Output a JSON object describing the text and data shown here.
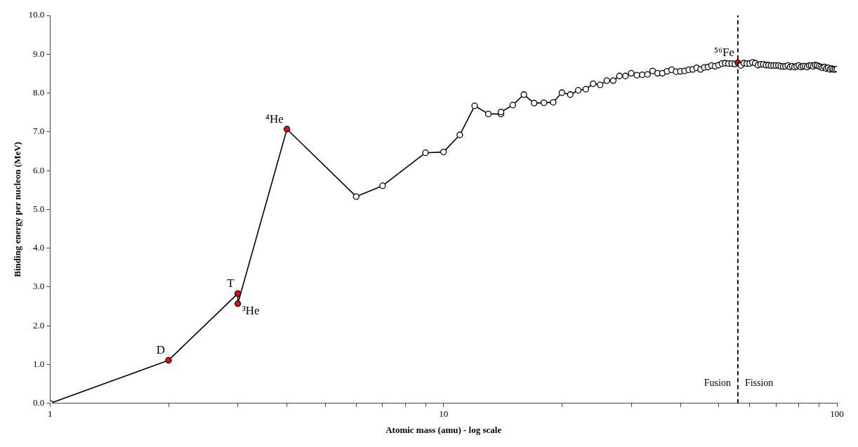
{
  "chart_data": {
    "type": "line",
    "xlabel": "Atomic mass (amu) - log scale",
    "ylabel": "Binding energy per nucleon (MeV)",
    "log": "x",
    "xlim": [
      1,
      100
    ],
    "ylim": [
      0,
      10
    ],
    "xticks": [
      1,
      {
        "value": 2,
        "label": null
      },
      {
        "value": 3,
        "label": null
      },
      {
        "value": 4,
        "label": null
      },
      {
        "value": 5,
        "label": null
      },
      {
        "value": 6,
        "label": null
      },
      {
        "value": 7,
        "label": null
      },
      {
        "value": 8,
        "label": null
      },
      {
        "value": 9,
        "label": null
      },
      10,
      {
        "value": 20,
        "label": null
      },
      {
        "value": 30,
        "label": null
      },
      {
        "value": 40,
        "label": null
      },
      {
        "value": 50,
        "label": null
      },
      {
        "value": 60,
        "label": null
      },
      {
        "value": 70,
        "label": null
      },
      {
        "value": 80,
        "label": null
      },
      {
        "value": 90,
        "label": null
      },
      100
    ],
    "yticks": [
      {
        "value": 0,
        "label": "0.0"
      },
      {
        "value": 1,
        "label": "1.0"
      },
      {
        "value": 2,
        "label": "2.0"
      },
      {
        "value": 3,
        "label": "3.0"
      },
      {
        "value": 4,
        "label": "4.0"
      },
      {
        "value": 5,
        "label": "5.0"
      },
      {
        "value": 6,
        "label": "6.0"
      },
      {
        "value": 7,
        "label": "7.0"
      },
      {
        "value": 8,
        "label": "8.0"
      },
      {
        "value": 9,
        "label": "9.0"
      },
      {
        "value": 10,
        "label": "10.0"
      }
    ],
    "grid": false,
    "legend": false,
    "marker": "circle",
    "line_style": "solid",
    "series": [
      {
        "color": "#000000",
        "x": [
          1,
          2,
          3,
          3,
          4,
          6,
          7,
          9,
          10,
          11,
          12,
          13,
          14,
          14,
          15,
          16,
          17,
          18,
          19,
          20,
          21,
          22,
          23,
          24,
          25,
          26,
          27,
          28,
          29,
          30,
          31,
          32,
          33,
          34,
          35,
          36,
          37,
          38,
          39,
          40,
          41,
          42,
          43,
          44,
          45,
          46,
          47,
          48,
          49,
          50,
          51,
          52,
          53,
          54,
          55,
          56,
          57,
          58,
          59,
          60,
          61,
          62,
          63,
          64,
          65,
          66,
          67,
          68,
          69,
          70,
          71,
          72,
          73,
          74,
          75,
          76,
          77,
          78,
          79,
          80,
          81,
          82,
          83,
          84,
          85,
          86,
          87,
          88,
          89,
          90,
          91,
          92,
          93,
          94,
          95,
          96,
          97,
          98,
          99,
          100
        ],
        "values": [
          0,
          1.11,
          2.83,
          2.57,
          7.07,
          5.33,
          5.61,
          6.46,
          6.48,
          6.92,
          7.67,
          7.46,
          7.46,
          7.51,
          7.69,
          7.96,
          7.74,
          7.75,
          7.76,
          8.01,
          7.96,
          8.07,
          8.1,
          8.24,
          8.21,
          8.32,
          8.32,
          8.44,
          8.44,
          8.51,
          8.46,
          8.47,
          8.48,
          8.57,
          8.51,
          8.51,
          8.56,
          8.6,
          8.55,
          8.56,
          8.57,
          8.6,
          8.61,
          8.65,
          8.61,
          8.66,
          8.67,
          8.71,
          8.69,
          8.72,
          8.76,
          8.77,
          8.76,
          8.76,
          8.75,
          8.78,
          8.71,
          8.77,
          8.76,
          8.76,
          8.79,
          8.77,
          8.72,
          8.74,
          8.74,
          8.72,
          8.72,
          8.71,
          8.71,
          8.71,
          8.71,
          8.69,
          8.68,
          8.69,
          8.71,
          8.67,
          8.69,
          8.67,
          8.69,
          8.71,
          8.67,
          8.69,
          8.69,
          8.67,
          8.71,
          8.71,
          8.69,
          8.72,
          8.71,
          8.69,
          8.67,
          8.65,
          8.67,
          8.63,
          8.65,
          8.61,
          8.63,
          8.61,
          8.61,
          8.62
        ],
        "colors": [
          "#ffffff",
          "#ff0000",
          "#ff0000",
          "#ff0000",
          "#ff0000",
          "#ffffff",
          "#ffffff",
          "#ffffff",
          "#ffffff",
          "#ffffff",
          "#ffffff",
          "#ffffff",
          "#ffffff",
          "#ffffff",
          "#ffffff",
          "#ffffff",
          "#ffffff",
          "#ffffff",
          "#ffffff",
          "#ffffff",
          "#ffffff",
          "#ffffff",
          "#ffffff",
          "#ffffff",
          "#ffffff",
          "#ffffff",
          "#ffffff",
          "#ffffff",
          "#ffffff",
          "#ffffff",
          "#ffffff",
          "#ffffff",
          "#ffffff",
          "#ffffff",
          "#ffffff",
          "#ffffff",
          "#ffffff",
          "#ffffff",
          "#ffffff",
          "#ffffff",
          "#ffffff",
          "#ffffff",
          "#ffffff",
          "#ffffff",
          "#ffffff",
          "#ffffff",
          "#ffffff",
          "#ffffff",
          "#ffffff",
          "#ffffff",
          "#ffffff",
          "#ffffff",
          "#ffffff",
          "#ffffff",
          "#ffffff",
          "#ff0000",
          "#ffffff",
          "#ffffff",
          "#ffffff",
          "#ffffff",
          "#ffffff",
          "#ffffff",
          "#ffffff",
          "#ffffff",
          "#ffffff",
          "#ffffff",
          "#ffffff",
          "#ffffff",
          "#ffffff",
          "#ffffff",
          "#ffffff",
          "#ffffff",
          "#ffffff",
          "#ffffff",
          "#ffffff",
          "#ffffff",
          "#ffffff",
          "#ffffff",
          "#ffffff",
          "#ffffff",
          "#ffffff",
          "#ffffff",
          "#ffffff",
          "#ffffff",
          "#ffffff",
          "#ffffff",
          "#ffffff",
          "#ffffff",
          "#ffffff",
          "#ffffff",
          "#ffffff",
          "#ffffff",
          "#ffffff",
          "#ffffff",
          "#ffffff",
          "#ffffff",
          "#ffffff",
          "#ffffff",
          "#ffffff",
          "#ffffff"
        ]
      }
    ],
    "ref_lines": [
      {
        "axis": "x",
        "value": 56,
        "line_style": "dashed",
        "color": "#000000"
      }
    ],
    "annotations": [
      {
        "text": "D",
        "x": 2,
        "y": 1.11
      },
      {
        "text": "T",
        "x": 3,
        "y": 2.83
      },
      {
        "text": "³He",
        "x": 3,
        "y": 2.57
      },
      {
        "text": "⁴He",
        "x": 4,
        "y": 7.07
      },
      {
        "text": "⁵⁶Fe",
        "x": 56,
        "y": 8.78
      },
      "Fusion",
      "Fission"
    ]
  }
}
